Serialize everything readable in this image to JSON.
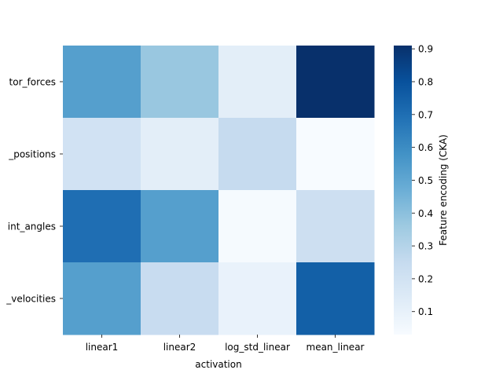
{
  "chart_data": {
    "type": "heatmap",
    "x_categories": [
      "linear1",
      "linear2",
      "log_std_linear",
      "mean_linear"
    ],
    "y_categories": [
      "actuator_forces",
      "body_positions",
      "joint_angles",
      "joint_velocities"
    ],
    "y_tick_labels_visible": [
      "tor_forces",
      "_positions",
      "int_angles",
      "_velocities"
    ],
    "values": [
      [
        0.53,
        0.37,
        0.12,
        0.91
      ],
      [
        0.2,
        0.12,
        0.25,
        0.03
      ],
      [
        0.7,
        0.53,
        0.04,
        0.22
      ],
      [
        0.53,
        0.24,
        0.09,
        0.75
      ]
    ],
    "xlabel": "activation",
    "ylabel": "",
    "colorbar": {
      "label": "Feature encoding (CKA)",
      "min": 0.03,
      "max": 0.91,
      "ticks": [
        0.1,
        0.2,
        0.3,
        0.4,
        0.5,
        0.6,
        0.7,
        0.8,
        0.9
      ],
      "tick_labels": [
        "0.1",
        "0.2",
        "0.3",
        "0.4",
        "0.5",
        "0.6",
        "0.7",
        "0.8",
        "0.9"
      ]
    },
    "colormap": "Blues",
    "colormap_stops": [
      "#f7fbff",
      "#deebf7",
      "#c6dbef",
      "#9ecae1",
      "#6baed6",
      "#4292c6",
      "#2171b5",
      "#08519c",
      "#08306b"
    ]
  }
}
